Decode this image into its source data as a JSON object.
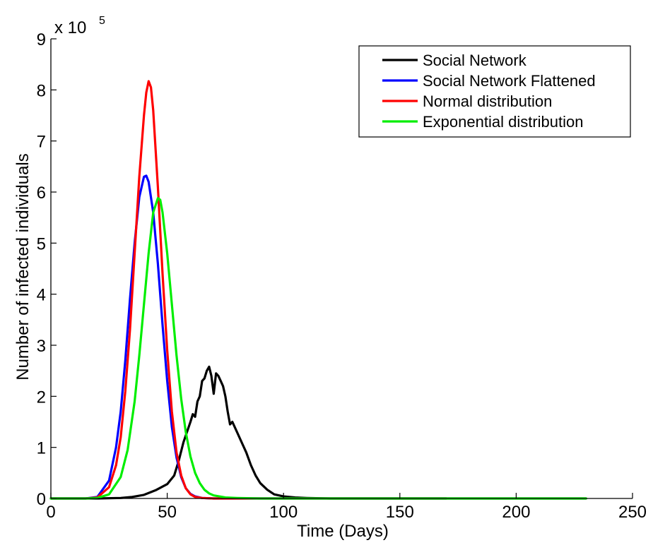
{
  "chart_data": {
    "type": "line",
    "title": "",
    "xlabel": "Time (Days)",
    "ylabel": "Number of infected individuals",
    "y_multiplier_label": "x 10",
    "y_multiplier_exponent": "5",
    "xlim": [
      0,
      250
    ],
    "ylim": [
      0,
      9
    ],
    "x_unit": "days",
    "y_scale_note": "values in units of 10^5",
    "xticks": [
      0,
      50,
      100,
      150,
      200,
      250
    ],
    "yticks": [
      0,
      1,
      2,
      3,
      4,
      5,
      6,
      7,
      8,
      9
    ],
    "grid": false,
    "legend_position": "top-right",
    "series": [
      {
        "name": "Social Network",
        "color": "#000000",
        "x": [
          0,
          20,
          30,
          35,
          40,
          45,
          50,
          53,
          55,
          57,
          60,
          61,
          62,
          63,
          64,
          65,
          66,
          67,
          68,
          69,
          70,
          71,
          72,
          73,
          74,
          75,
          76,
          77,
          78,
          80,
          82,
          84,
          86,
          88,
          90,
          93,
          96,
          100,
          105,
          110,
          120,
          230
        ],
        "values": [
          0,
          0,
          0.01,
          0.03,
          0.07,
          0.16,
          0.28,
          0.45,
          0.75,
          1.1,
          1.5,
          1.65,
          1.6,
          1.9,
          2.0,
          2.3,
          2.35,
          2.5,
          2.58,
          2.4,
          2.05,
          2.45,
          2.4,
          2.3,
          2.2,
          2.0,
          1.7,
          1.45,
          1.5,
          1.3,
          1.1,
          0.9,
          0.65,
          0.45,
          0.3,
          0.17,
          0.08,
          0.04,
          0.02,
          0.01,
          0,
          0
        ]
      },
      {
        "name": "Social Network Flattened",
        "color": "#0000ff",
        "x": [
          0,
          15,
          20,
          25,
          28,
          30,
          32,
          34,
          36,
          38,
          40,
          41,
          42,
          44,
          46,
          48,
          50,
          52,
          54,
          56,
          58,
          60,
          62,
          65,
          70,
          80,
          170
        ],
        "values": [
          0,
          0,
          0.03,
          0.35,
          1.0,
          1.7,
          2.7,
          3.9,
          5.0,
          5.9,
          6.3,
          6.32,
          6.2,
          5.6,
          4.6,
          3.4,
          2.3,
          1.4,
          0.8,
          0.42,
          0.2,
          0.09,
          0.04,
          0.01,
          0,
          0,
          0
        ]
      },
      {
        "name": "Normal distribution",
        "color": "#ff0000",
        "x": [
          0,
          15,
          20,
          25,
          28,
          30,
          32,
          34,
          36,
          38,
          40,
          41,
          42,
          43,
          44,
          46,
          48,
          50,
          52,
          54,
          56,
          58,
          60,
          62,
          65,
          70,
          80,
          170
        ],
        "values": [
          0,
          0,
          0.02,
          0.22,
          0.65,
          1.2,
          2.1,
          3.3,
          4.8,
          6.3,
          7.5,
          7.95,
          8.17,
          8.05,
          7.6,
          6.1,
          4.4,
          2.9,
          1.7,
          0.9,
          0.45,
          0.2,
          0.08,
          0.03,
          0.01,
          0,
          0,
          0
        ]
      },
      {
        "name": "Exponential distribution",
        "color": "#00ee00",
        "x": [
          0,
          15,
          20,
          25,
          30,
          33,
          36,
          38,
          40,
          42,
          44,
          46,
          47,
          48,
          50,
          52,
          54,
          56,
          58,
          60,
          62,
          64,
          66,
          68,
          70,
          75,
          80,
          90,
          230
        ],
        "values": [
          0,
          0,
          0.01,
          0.08,
          0.42,
          0.95,
          1.9,
          2.8,
          3.8,
          4.8,
          5.6,
          5.88,
          5.85,
          5.6,
          4.8,
          3.8,
          2.8,
          1.95,
          1.3,
          0.82,
          0.5,
          0.3,
          0.17,
          0.1,
          0.06,
          0.02,
          0.01,
          0,
          0
        ]
      }
    ]
  }
}
